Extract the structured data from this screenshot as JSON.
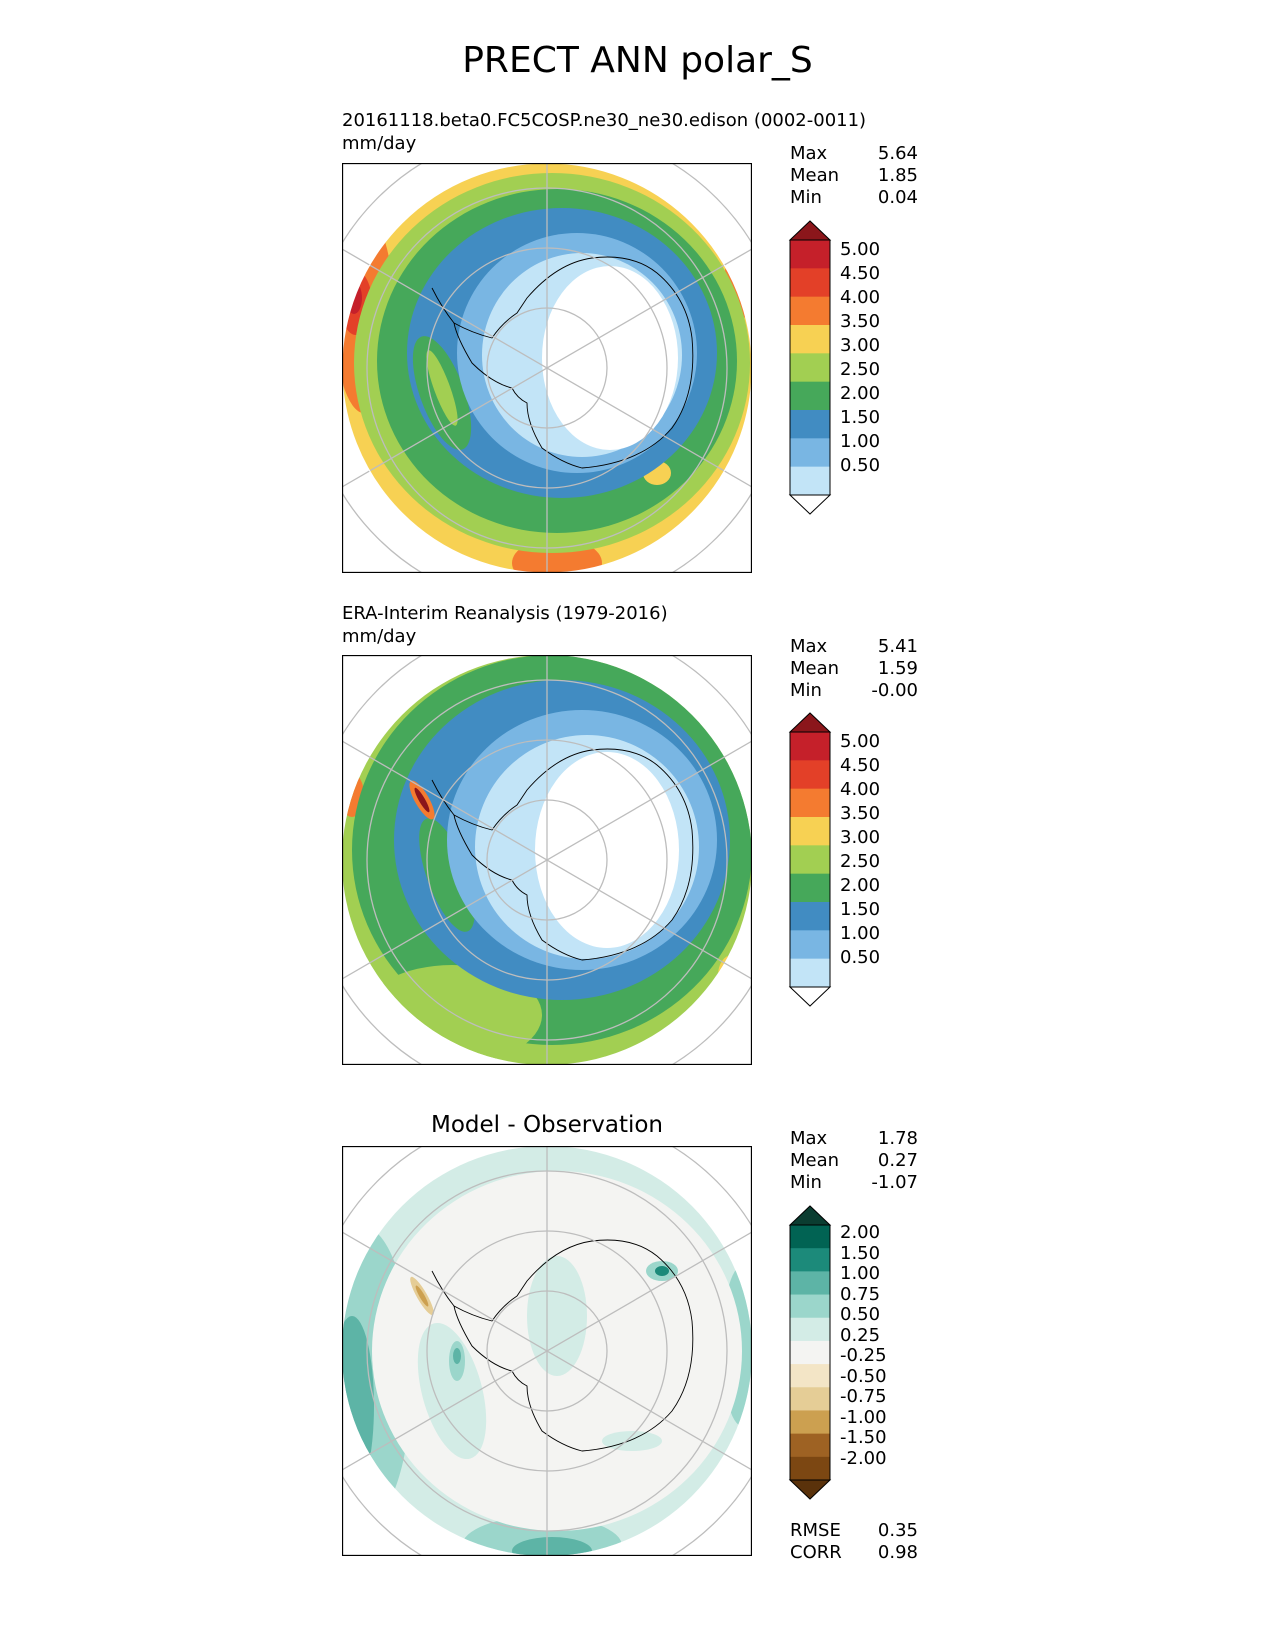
{
  "figure_title": "PRECT ANN polar_S",
  "panels": [
    {
      "id": "model",
      "title_line1": "20161118.beta0.FC5COSP.ne30_ne30.edison (0002-0011)",
      "title_line2": "mm/day",
      "stats": [
        {
          "label": "Max",
          "value": "5.64"
        },
        {
          "label": "Mean",
          "value": "1.85"
        },
        {
          "label": "Min",
          "value": "0.04"
        }
      ]
    },
    {
      "id": "obs",
      "title_line1": "ERA-Interim Reanalysis (1979-2016)",
      "title_line2": "mm/day",
      "stats": [
        {
          "label": "Max",
          "value": "5.41"
        },
        {
          "label": "Mean",
          "value": "1.59"
        },
        {
          "label": "Min",
          "value": "-0.00"
        }
      ]
    },
    {
      "id": "diff",
      "title": "Model - Observation",
      "stats": [
        {
          "label": "Max",
          "value": "1.78"
        },
        {
          "label": "Mean",
          "value": "0.27"
        },
        {
          "label": "Min",
          "value": "-1.07"
        }
      ],
      "metrics": [
        {
          "label": "RMSE",
          "value": "0.35"
        },
        {
          "label": "CORR",
          "value": "0.98"
        }
      ]
    }
  ],
  "colorbars": {
    "precip": {
      "ticks": [
        "5.00",
        "4.50",
        "4.00",
        "3.50",
        "3.00",
        "2.50",
        "2.00",
        "1.50",
        "1.00",
        "0.50"
      ],
      "colors": [
        "#8b161b",
        "#c5202a",
        "#e34028",
        "#f47b30",
        "#f7d153",
        "#a2cf52",
        "#46a85a",
        "#418cc2",
        "#79b6e3",
        "#c2e4f7",
        "#ffffff"
      ]
    },
    "diff": {
      "ticks": [
        "2.00",
        "1.50",
        "1.00",
        "0.75",
        "0.50",
        "0.25",
        "-0.25",
        "-0.50",
        "-0.75",
        "-1.00",
        "-1.50",
        "-2.00"
      ],
      "colors": [
        "#0b3d31",
        "#016353",
        "#1c8a7a",
        "#5db4a6",
        "#9bd6cb",
        "#d3ece6",
        "#f4f4f2",
        "#f3e5c6",
        "#e5cd96",
        "#cca050",
        "#9e6223",
        "#7c4712",
        "#5a320b"
      ]
    }
  },
  "chart_data": [
    {
      "type": "heatmap",
      "title": "20161118.beta0.FC5COSP.ne30_ne30.edison (0002-0011)",
      "units": "mm/day",
      "projection": "south-polar-stereographic",
      "levels": [
        0.5,
        1.0,
        1.5,
        2.0,
        2.5,
        3.0,
        3.5,
        4.0,
        4.5,
        5.0
      ],
      "max": 5.64,
      "mean": 1.85,
      "min": 0.04
    },
    {
      "type": "heatmap",
      "title": "ERA-Interim Reanalysis (1979-2016)",
      "units": "mm/day",
      "projection": "south-polar-stereographic",
      "levels": [
        0.5,
        1.0,
        1.5,
        2.0,
        2.5,
        3.0,
        3.5,
        4.0,
        4.5,
        5.0
      ],
      "max": 5.41,
      "mean": 1.59,
      "min": -0.0
    },
    {
      "type": "heatmap",
      "title": "Model - Observation",
      "projection": "south-polar-stereographic",
      "levels": [
        -2.0,
        -1.5,
        -1.0,
        -0.75,
        -0.5,
        -0.25,
        0.25,
        0.5,
        0.75,
        1.0,
        1.5,
        2.0
      ],
      "max": 1.78,
      "mean": 0.27,
      "min": -1.07,
      "rmse": 0.35,
      "corr": 0.98
    }
  ]
}
